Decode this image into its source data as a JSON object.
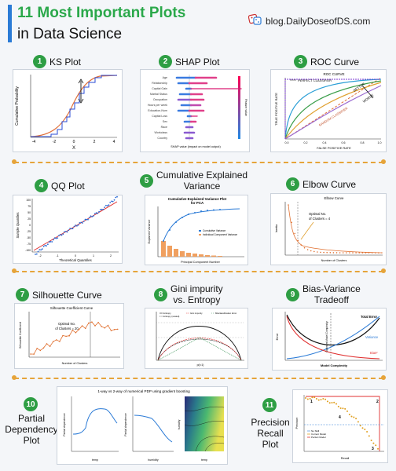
{
  "header": {
    "title_line1": "11 Most Important Plots",
    "title_line2": "in Data Science",
    "blog": "blog.DailyDoseofDS.com"
  },
  "plots": [
    {
      "num": "1",
      "title": "KS Plot",
      "ylabel": "Cumulative Probability",
      "xlabel": "X",
      "xticks": [
        "-4",
        "-2",
        "0",
        "2",
        "4"
      ]
    },
    {
      "num": "2",
      "title": "SHAP Plot",
      "features": [
        "Age",
        "Relationship",
        "Capital Gain",
        "Marital Status",
        "Occupation",
        "Hours per week",
        "Education-Num",
        "Capital Loss",
        "Sex",
        "Race",
        "Workclass",
        "Country"
      ],
      "xlabel": "SHAP value (impact on model output)",
      "cbar_label": "Feature value"
    },
    {
      "num": "3",
      "title": "ROC Curve",
      "chart_title": "ROC CURVE",
      "perfect": "PERFECT CLASSIFIER",
      "better": "BETTER",
      "worse": "WORSE",
      "random": "RANDOM CLASSIFIER",
      "ylabel": "TRUE POSITIVE RATE",
      "xlabel": "FALSE POSITIVE RATE",
      "xticks": [
        "0.0",
        "0.2",
        "0.4",
        "0.6",
        "0.8",
        "1.0"
      ]
    },
    {
      "num": "4",
      "title": "QQ Plot",
      "ylabel": "Sample Quantiles",
      "xlabel": "Theoretical Quantiles",
      "xticks": [
        "-2",
        "-1",
        "0",
        "1",
        "2"
      ],
      "yticks": [
        "100",
        "75",
        "50",
        "25",
        "0",
        "-25",
        "-50",
        "-75",
        "-100"
      ]
    },
    {
      "num": "5",
      "title_line1": "Cumulative Explained",
      "title_line2": "Variance",
      "chart_title_line1": "Cumulative Explained Variance Plot",
      "chart_title_line2": "for PCA",
      "ylabel": "Explained Variance",
      "xlabel": "Principal Component Number",
      "legend_1": "Cumulative Variance",
      "legend_2": "Individual Component Variance"
    },
    {
      "num": "6",
      "title": "Elbow Curve",
      "chart_title": "Elbow Curve",
      "annotation_line1": "Optimal No.",
      "annotation_line2": "of Clusters = 4",
      "ylabel": "Inertia",
      "xlabel": "Number of Clusters"
    },
    {
      "num": "7",
      "title": "Silhouette Curve",
      "chart_title": "Silhouette Coefficient Curve",
      "annotation_line1": "Optimal No.",
      "annotation_line2": "of Clusters = 20",
      "ylabel": "Silhouette Coefficient",
      "xlabel": "Number of Clusters"
    },
    {
      "num": "8",
      "title_line1": "Gini impurity",
      "title_line2": "vs. Entropy",
      "legend": [
        "Entropy",
        "Entropy (scaled)",
        "Gini impurity",
        "Misclassification Error"
      ],
      "xlabel": "p(i=1)"
    },
    {
      "num": "9",
      "title_line1": "Bias-Variance",
      "title_line2": "Tradeoff",
      "total_error": "Total Error",
      "variance": "Variance",
      "bias": "Bias²",
      "optimum": "Optimum Model Complexity",
      "ylabel": "Error",
      "xlabel": "Model Complexity"
    },
    {
      "num": "10",
      "title_line1": "Partial",
      "title_line2": "Dependency",
      "title_line3": "Plot",
      "chart_title": "1-way vs 2-way of numerical PDP using gradient boosting",
      "sub_xlabels": [
        "temp",
        "humidity",
        "temp"
      ],
      "sub_ylabels": [
        "Partial dependence",
        "Partial dependence",
        "humidity"
      ]
    },
    {
      "num": "11",
      "title_line1": "Precision",
      "title_line2": "Recall Plot",
      "legend": [
        "No Skill",
        "Current Model",
        "Perfect Model"
      ],
      "ylabel": "Precision",
      "xlabel": "Recall",
      "markers": [
        "1",
        "2",
        "3",
        "4"
      ]
    }
  ]
}
